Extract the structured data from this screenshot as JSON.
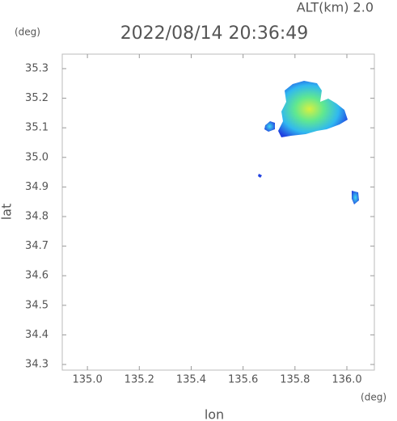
{
  "header": {
    "altitude": "ALT(km)  2.0",
    "y_unit": "(deg)",
    "timestamp": "2022/08/14 20:36:49"
  },
  "chart_data": {
    "type": "radar-map",
    "xlabel": "lon",
    "ylabel": "lat",
    "x_unit": "(deg)",
    "xlim": [
      134.903,
      136.106
    ],
    "ylim": [
      34.281,
      35.349
    ],
    "xticks": [
      {
        "value": 135.0,
        "label": "135.0"
      },
      135.2,
      135.4,
      135.6,
      135.8,
      {
        "value": 136.0,
        "label": "136.0"
      }
    ],
    "yticks": [
      34.3,
      34.4,
      34.5,
      34.6,
      34.7,
      34.8,
      34.9,
      {
        "value": 35.0,
        "label": "35.0"
      },
      35.1,
      35.2,
      35.3
    ]
  }
}
